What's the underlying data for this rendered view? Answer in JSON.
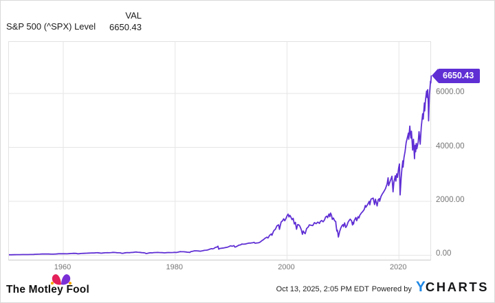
{
  "header": {
    "title": "S&P 500 (^SPX) Level",
    "column_label": "VAL",
    "value": "6650.43"
  },
  "callout": {
    "label": "6650.43",
    "color": "#5f2fd4"
  },
  "chart_data": {
    "type": "line",
    "title": "S&P 500 (^SPX) Level",
    "xlabel": "",
    "ylabel": "",
    "grid": true,
    "legend": "none",
    "x_range": [
      1950.29,
      2025.87
    ],
    "y_range": [
      -216.6,
      7911.5
    ],
    "x_ticks": [
      {
        "value": 1960,
        "label": "1960"
      },
      {
        "value": 1980,
        "label": "1980"
      },
      {
        "value": 2000,
        "label": "2000"
      },
      {
        "value": 2020,
        "label": "2020"
      }
    ],
    "y_ticks": [
      {
        "value": 6000,
        "label": "6000.00"
      },
      {
        "value": 4000,
        "label": "4000.00"
      },
      {
        "value": 2000,
        "label": "2000.00"
      },
      {
        "value": 0,
        "label": "0.00"
      }
    ],
    "series": [
      {
        "name": "S&P 500 (^SPX) Level",
        "color": "#5f2fd4",
        "last_value": 6650.43,
        "points": [
          [
            1950.2,
            17
          ],
          [
            1950.7,
            19
          ],
          [
            1951.2,
            21.5
          ],
          [
            1951.7,
            22.5
          ],
          [
            1952.2,
            23.5
          ],
          [
            1952.7,
            24.5
          ],
          [
            1953.2,
            26
          ],
          [
            1953.7,
            24.5
          ],
          [
            1954.2,
            27
          ],
          [
            1954.7,
            31
          ],
          [
            1955.0,
            36
          ],
          [
            1955.4,
            38
          ],
          [
            1955.8,
            42
          ],
          [
            1956.2,
            45
          ],
          [
            1956.6,
            47
          ],
          [
            1957.0,
            45
          ],
          [
            1957.4,
            47
          ],
          [
            1957.8,
            40
          ],
          [
            1958.2,
            42
          ],
          [
            1958.7,
            47
          ],
          [
            1959.2,
            55
          ],
          [
            1959.7,
            57
          ],
          [
            1960.2,
            55
          ],
          [
            1960.7,
            54
          ],
          [
            1961.0,
            59
          ],
          [
            1961.5,
            65
          ],
          [
            1961.9,
            71
          ],
          [
            1962.3,
            68
          ],
          [
            1962.5,
            56
          ],
          [
            1962.8,
            57
          ],
          [
            1963.2,
            65
          ],
          [
            1963.7,
            71
          ],
          [
            1964.2,
            77
          ],
          [
            1964.7,
            82
          ],
          [
            1965.2,
            86
          ],
          [
            1965.5,
            84
          ],
          [
            1965.9,
            91
          ],
          [
            1966.1,
            93
          ],
          [
            1966.5,
            85
          ],
          [
            1966.8,
            77
          ],
          [
            1967.1,
            85
          ],
          [
            1967.5,
            92
          ],
          [
            1967.9,
            95
          ],
          [
            1968.2,
            91
          ],
          [
            1968.6,
            99
          ],
          [
            1968.9,
            106
          ],
          [
            1969.3,
            101
          ],
          [
            1969.6,
            94
          ],
          [
            1969.9,
            92
          ],
          [
            1970.2,
            88
          ],
          [
            1970.4,
            76
          ],
          [
            1970.6,
            72
          ],
          [
            1970.9,
            83
          ],
          [
            1971.2,
            95
          ],
          [
            1971.5,
            100
          ],
          [
            1971.8,
            94
          ],
          [
            1972.1,
            103
          ],
          [
            1972.5,
            108
          ],
          [
            1972.9,
            116
          ],
          [
            1973.0,
            119
          ],
          [
            1973.3,
            111
          ],
          [
            1973.7,
            106
          ],
          [
            1974.0,
            97
          ],
          [
            1974.3,
            93
          ],
          [
            1974.6,
            86
          ],
          [
            1974.8,
            64
          ],
          [
            1975.0,
            70
          ],
          [
            1975.3,
            83
          ],
          [
            1975.6,
            92
          ],
          [
            1975.9,
            89
          ],
          [
            1976.2,
            100
          ],
          [
            1976.6,
            103
          ],
          [
            1976.9,
            105
          ],
          [
            1977.3,
            99
          ],
          [
            1977.7,
            97
          ],
          [
            1978.1,
            89
          ],
          [
            1978.5,
            97
          ],
          [
            1978.8,
            103
          ],
          [
            1979.2,
            100
          ],
          [
            1979.6,
            103
          ],
          [
            1979.9,
            108
          ],
          [
            1980.2,
            102
          ],
          [
            1980.5,
            114
          ],
          [
            1980.9,
            135
          ],
          [
            1981.1,
            130
          ],
          [
            1981.5,
            131
          ],
          [
            1981.9,
            122
          ],
          [
            1982.2,
            113
          ],
          [
            1982.5,
            109
          ],
          [
            1982.6,
            102
          ],
          [
            1982.8,
            133
          ],
          [
            1983.1,
            145
          ],
          [
            1983.5,
            165
          ],
          [
            1983.9,
            164
          ],
          [
            1984.2,
            157
          ],
          [
            1984.5,
            150
          ],
          [
            1984.9,
            166
          ],
          [
            1985.2,
            180
          ],
          [
            1985.6,
            188
          ],
          [
            1985.9,
            202
          ],
          [
            1986.2,
            226
          ],
          [
            1986.5,
            245
          ],
          [
            1986.7,
            236
          ],
          [
            1986.9,
            249
          ],
          [
            1987.2,
            290
          ],
          [
            1987.5,
            305
          ],
          [
            1987.65,
            336
          ],
          [
            1987.8,
            225
          ],
          [
            1987.9,
            245
          ],
          [
            1988.1,
            255
          ],
          [
            1988.4,
            262
          ],
          [
            1988.7,
            270
          ],
          [
            1989.0,
            285
          ],
          [
            1989.3,
            295
          ],
          [
            1989.6,
            320
          ],
          [
            1989.9,
            350
          ],
          [
            1990.2,
            335
          ],
          [
            1990.5,
            360
          ],
          [
            1990.7,
            300
          ],
          [
            1990.9,
            315
          ],
          [
            1991.1,
            340
          ],
          [
            1991.4,
            375
          ],
          [
            1991.7,
            385
          ],
          [
            1991.9,
            415
          ],
          [
            1992.2,
            410
          ],
          [
            1992.5,
            415
          ],
          [
            1992.9,
            435
          ],
          [
            1993.2,
            450
          ],
          [
            1993.5,
            450
          ],
          [
            1993.9,
            465
          ],
          [
            1994.1,
            480
          ],
          [
            1994.3,
            445
          ],
          [
            1994.6,
            455
          ],
          [
            1994.9,
            460
          ],
          [
            1995.2,
            490
          ],
          [
            1995.5,
            540
          ],
          [
            1995.8,
            580
          ],
          [
            1996.1,
            635
          ],
          [
            1996.4,
            670
          ],
          [
            1996.6,
            640
          ],
          [
            1996.9,
            745
          ],
          [
            1997.2,
            790
          ],
          [
            1997.3,
            740
          ],
          [
            1997.6,
            900
          ],
          [
            1997.8,
            945
          ],
          [
            1997.9,
            955
          ],
          [
            1998.2,
            1090
          ],
          [
            1998.5,
            1130
          ],
          [
            1998.65,
            960
          ],
          [
            1998.8,
            1100
          ],
          [
            1998.95,
            1230
          ],
          [
            1999.2,
            1280
          ],
          [
            1999.4,
            1350
          ],
          [
            1999.6,
            1280
          ],
          [
            1999.8,
            1360
          ],
          [
            2000.0,
            1460
          ],
          [
            2000.2,
            1527
          ],
          [
            2000.35,
            1420
          ],
          [
            2000.5,
            1480
          ],
          [
            2000.65,
            1430
          ],
          [
            2000.9,
            1320
          ],
          [
            2001.1,
            1370
          ],
          [
            2001.3,
            1160
          ],
          [
            2001.5,
            1220
          ],
          [
            2001.7,
            965
          ],
          [
            2001.9,
            1140
          ],
          [
            2002.1,
            1130
          ],
          [
            2002.3,
            1075
          ],
          [
            2002.55,
            950
          ],
          [
            2002.75,
            776
          ],
          [
            2002.9,
            900
          ],
          [
            2003.1,
            830
          ],
          [
            2003.25,
            800
          ],
          [
            2003.5,
            990
          ],
          [
            2003.8,
            1050
          ],
          [
            2004.0,
            1130
          ],
          [
            2004.3,
            1110
          ],
          [
            2004.6,
            1100
          ],
          [
            2004.9,
            1210
          ],
          [
            2005.2,
            1170
          ],
          [
            2005.5,
            1230
          ],
          [
            2005.8,
            1180
          ],
          [
            2005.95,
            1250
          ],
          [
            2006.2,
            1290
          ],
          [
            2006.45,
            1240
          ],
          [
            2006.7,
            1310
          ],
          [
            2006.9,
            1420
          ],
          [
            2007.1,
            1450
          ],
          [
            2007.25,
            1390
          ],
          [
            2007.5,
            1530
          ],
          [
            2007.65,
            1430
          ],
          [
            2007.78,
            1565
          ],
          [
            2007.95,
            1480
          ],
          [
            2008.1,
            1330
          ],
          [
            2008.3,
            1380
          ],
          [
            2008.5,
            1280
          ],
          [
            2008.7,
            1250
          ],
          [
            2008.78,
            1100
          ],
          [
            2008.9,
            900
          ],
          [
            2009.0,
            930
          ],
          [
            2009.1,
            820
          ],
          [
            2009.18,
            676
          ],
          [
            2009.4,
            880
          ],
          [
            2009.6,
            1000
          ],
          [
            2009.8,
            1090
          ],
          [
            2010.0,
            1140
          ],
          [
            2010.1,
            1060
          ],
          [
            2010.3,
            1200
          ],
          [
            2010.5,
            1030
          ],
          [
            2010.7,
            1100
          ],
          [
            2010.9,
            1220
          ],
          [
            2011.1,
            1290
          ],
          [
            2011.3,
            1340
          ],
          [
            2011.55,
            1270
          ],
          [
            2011.7,
            1120
          ],
          [
            2011.8,
            1220
          ],
          [
            2011.9,
            1160
          ],
          [
            2012.0,
            1280
          ],
          [
            2012.3,
            1400
          ],
          [
            2012.45,
            1280
          ],
          [
            2012.7,
            1430
          ],
          [
            2012.85,
            1380
          ],
          [
            2013.0,
            1480
          ],
          [
            2013.3,
            1570
          ],
          [
            2013.5,
            1610
          ],
          [
            2013.8,
            1700
          ],
          [
            2014.0,
            1848
          ],
          [
            2014.1,
            1780
          ],
          [
            2014.4,
            1880
          ],
          [
            2014.7,
            2000
          ],
          [
            2014.8,
            1870
          ],
          [
            2015.0,
            2080
          ],
          [
            2015.2,
            2100
          ],
          [
            2015.4,
            2120
          ],
          [
            2015.65,
            1880
          ],
          [
            2015.8,
            2080
          ],
          [
            2016.1,
            1830
          ],
          [
            2016.3,
            2060
          ],
          [
            2016.5,
            2100
          ],
          [
            2016.55,
            2000
          ],
          [
            2016.8,
            2180
          ],
          [
            2017.0,
            2260
          ],
          [
            2017.3,
            2360
          ],
          [
            2017.6,
            2470
          ],
          [
            2017.9,
            2650
          ],
          [
            2018.07,
            2872
          ],
          [
            2018.15,
            2580
          ],
          [
            2018.4,
            2720
          ],
          [
            2018.7,
            2900
          ],
          [
            2018.75,
            2930
          ],
          [
            2018.95,
            2351
          ],
          [
            2019.1,
            2700
          ],
          [
            2019.35,
            2945
          ],
          [
            2019.45,
            2750
          ],
          [
            2019.6,
            3020
          ],
          [
            2019.75,
            2890
          ],
          [
            2019.95,
            3230
          ],
          [
            2020.1,
            3386
          ],
          [
            2020.22,
            2237
          ],
          [
            2020.4,
            2870
          ],
          [
            2020.55,
            3230
          ],
          [
            2020.7,
            3500
          ],
          [
            2020.75,
            3270
          ],
          [
            2020.9,
            3620
          ],
          [
            2021.1,
            3850
          ],
          [
            2021.3,
            4180
          ],
          [
            2021.5,
            4350
          ],
          [
            2021.7,
            4530
          ],
          [
            2021.75,
            4300
          ],
          [
            2021.95,
            4790
          ],
          [
            2022.05,
            4500
          ],
          [
            2022.15,
            4350
          ],
          [
            2022.25,
            4600
          ],
          [
            2022.45,
            3900
          ],
          [
            2022.6,
            4300
          ],
          [
            2022.78,
            3580
          ],
          [
            2022.9,
            4080
          ],
          [
            2023.0,
            3840
          ],
          [
            2023.1,
            4150
          ],
          [
            2023.2,
            3950
          ],
          [
            2023.45,
            4200
          ],
          [
            2023.6,
            4580
          ],
          [
            2023.8,
            4120
          ],
          [
            2024.0,
            4770
          ],
          [
            2024.25,
            5250
          ],
          [
            2024.35,
            5050
          ],
          [
            2024.55,
            5650
          ],
          [
            2024.6,
            5350
          ],
          [
            2024.75,
            5750
          ],
          [
            2024.95,
            6090
          ],
          [
            2025.05,
            5850
          ],
          [
            2025.15,
            6140
          ],
          [
            2025.25,
            5580
          ],
          [
            2025.3,
            4983
          ],
          [
            2025.45,
            5960
          ],
          [
            2025.55,
            6200
          ],
          [
            2025.65,
            6460
          ],
          [
            2025.7,
            6390
          ],
          [
            2025.78,
            6650.43
          ]
        ]
      }
    ]
  },
  "footer": {
    "brand": "The Motley Fool",
    "timestamp": "Oct 13, 2025, 2:05 PM EDT",
    "powered_by": "Powered by",
    "provider": {
      "prefix": "Y",
      "rest": "CHARTS"
    }
  },
  "colors": {
    "line": "#5f2fd4",
    "grid": "#e6e6e6",
    "plot_border": "#e2e2e2",
    "tick_text": "#757575",
    "mf_red": "#e4215a",
    "mf_purple": "#7a2fd6",
    "mf_gold": "#f5a800",
    "ycharts_blue": "#1e88e5"
  }
}
